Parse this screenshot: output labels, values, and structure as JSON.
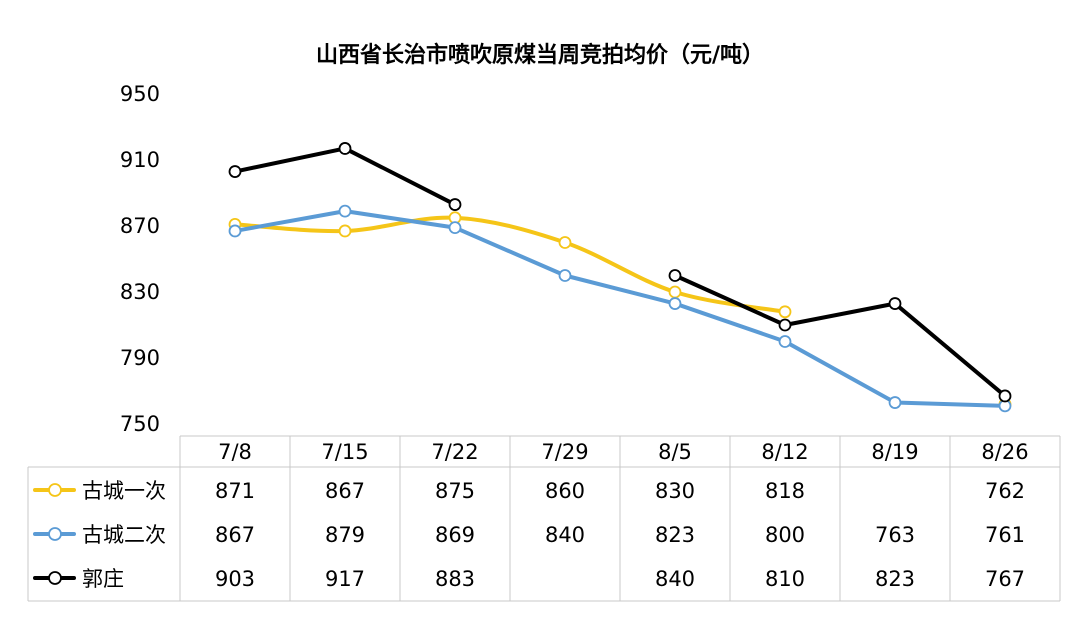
{
  "chart_data": {
    "type": "line",
    "title": "山西省长治市喷吹原煤当周竞拍均价（元/吨）",
    "xlabel": "",
    "ylabel": "",
    "categories": [
      "7/8",
      "7/15",
      "7/22",
      "7/29",
      "8/5",
      "8/12",
      "8/19",
      "8/26"
    ],
    "y_ticks": [
      "950",
      "910",
      "870",
      "830",
      "790",
      "750"
    ],
    "ylim": [
      750,
      950
    ],
    "grid": false,
    "legend_placement": "data-table",
    "series": [
      {
        "name": "古城一次",
        "color": "#F5C518",
        "smooth": true,
        "values": [
          871,
          867,
          875,
          860,
          830,
          818,
          null,
          762
        ],
        "table_values": [
          "871",
          "867",
          "875",
          "860",
          "830",
          "818",
          "",
          "762"
        ]
      },
      {
        "name": "古城二次",
        "color": "#5B9BD5",
        "smooth": false,
        "values": [
          867,
          879,
          869,
          840,
          823,
          800,
          763,
          761
        ],
        "table_values": [
          "867",
          "879",
          "869",
          "840",
          "823",
          "800",
          "763",
          "761"
        ]
      },
      {
        "name": "郭庄",
        "color": "#000000",
        "smooth": false,
        "values": [
          903,
          917,
          883,
          null,
          840,
          810,
          823,
          767
        ],
        "table_values": [
          "903",
          "917",
          "883",
          "",
          "840",
          "810",
          "823",
          "767"
        ]
      }
    ]
  }
}
